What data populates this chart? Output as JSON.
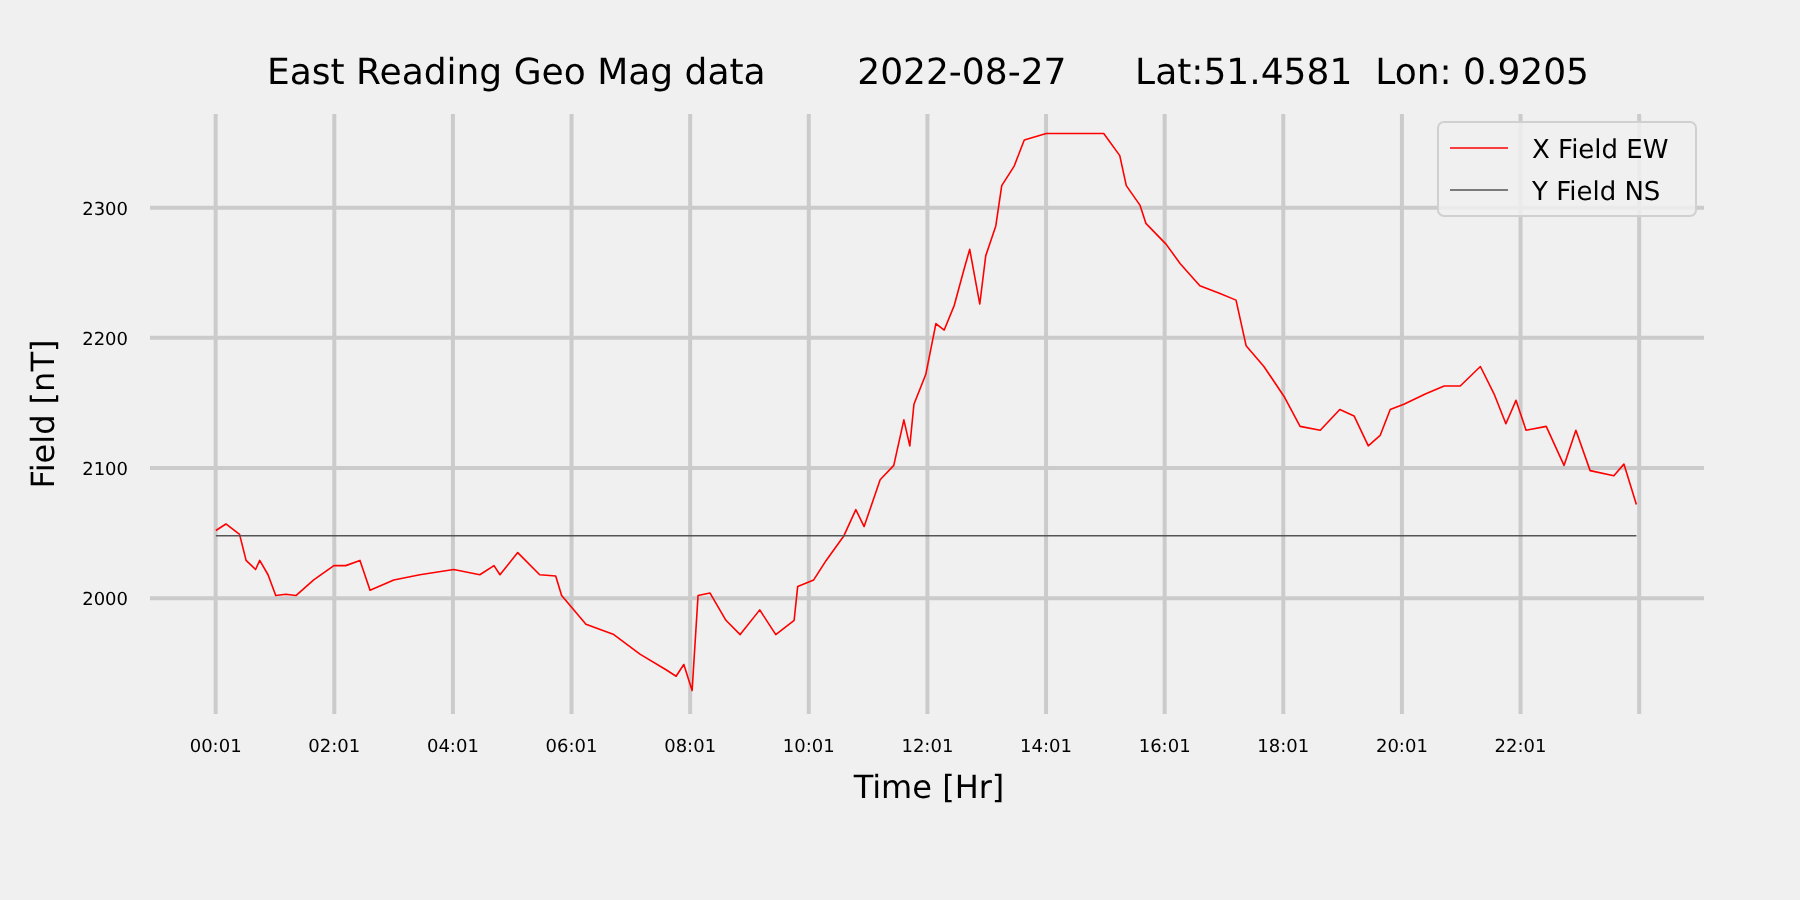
{
  "chart_data": {
    "type": "line",
    "title": "East Reading Geo Mag data        2022-08-27      Lat:51.4581  Lon: 0.9205",
    "xlabel": "Time  [Hr]",
    "ylabel": "Field  [nT]",
    "xlim": [
      -1.09,
      25.11
    ],
    "ylim": [
      1911,
      2372
    ],
    "xticks": [
      {
        "value": 0.017,
        "label": "00:01"
      },
      {
        "value": 2.017,
        "label": "02:01"
      },
      {
        "value": 4.017,
        "label": "04:01"
      },
      {
        "value": 6.017,
        "label": "06:01"
      },
      {
        "value": 8.017,
        "label": "08:01"
      },
      {
        "value": 10.017,
        "label": "10:01"
      },
      {
        "value": 12.017,
        "label": "12:01"
      },
      {
        "value": 14.017,
        "label": "14:01"
      },
      {
        "value": 16.017,
        "label": "16:01"
      },
      {
        "value": 18.017,
        "label": "18:01"
      },
      {
        "value": 20.017,
        "label": "20:01"
      },
      {
        "value": 22.017,
        "label": "22:01"
      },
      {
        "value": 24.017,
        "label": null
      }
    ],
    "yticks": [
      2000,
      2100,
      2200,
      2300
    ],
    "grid": true,
    "legend": "top right",
    "series": [
      {
        "name": "X Field EW",
        "color": "#ff0000",
        "x": [
          0.02,
          0.19,
          0.42,
          0.53,
          0.69,
          0.76,
          0.9,
          1.03,
          1.2,
          1.37,
          1.67,
          2.01,
          2.21,
          2.45,
          2.62,
          3.02,
          3.46,
          4.03,
          4.47,
          4.71,
          4.81,
          5.11,
          5.48,
          5.75,
          5.85,
          6.26,
          6.73,
          7.17,
          7.61,
          7.78,
          7.91,
          8.05,
          8.15,
          8.35,
          8.62,
          8.86,
          9.19,
          9.46,
          9.77,
          9.83,
          10.1,
          10.31,
          10.61,
          10.81,
          10.95,
          11.22,
          11.45,
          11.62,
          11.72,
          11.79,
          11.99,
          12.16,
          12.3,
          12.47,
          12.63,
          12.73,
          12.9,
          13.0,
          13.17,
          13.27,
          13.48,
          13.65,
          14.02,
          14.99,
          15.26,
          15.37,
          15.6,
          15.7,
          16.04,
          16.28,
          16.61,
          16.95,
          17.22,
          17.39,
          17.69,
          18.03,
          18.3,
          18.64,
          18.97,
          19.21,
          19.45,
          19.65,
          19.82,
          20.05,
          20.42,
          20.73,
          21.0,
          21.34,
          21.57,
          21.77,
          21.94,
          22.11,
          22.45,
          22.75,
          22.95,
          23.19,
          23.59,
          23.76,
          23.97
        ],
        "values": [
          2052,
          2057,
          2049,
          2029,
          2022,
          2029,
          2018,
          2002,
          2003,
          2002,
          2014,
          2025,
          2025,
          2029,
          2006,
          2014,
          2018,
          2022,
          2018,
          2025,
          2018,
          2035,
          2018,
          2017,
          2002,
          1980,
          1972,
          1957,
          1945,
          1940,
          1949,
          1929,
          2002,
          2004,
          1983,
          1972,
          1991,
          1972,
          1983,
          2009,
          2014,
          2029,
          2048,
          2068,
          2055,
          2091,
          2102,
          2137,
          2117,
          2149,
          2172,
          2211,
          2206,
          2225,
          2252,
          2268,
          2226,
          2263,
          2286,
          2317,
          2332,
          2352,
          2357,
          2357,
          2340,
          2317,
          2302,
          2288,
          2272,
          2257,
          2240,
          2234,
          2229,
          2194,
          2178,
          2155,
          2132,
          2129,
          2145,
          2140,
          2117,
          2125,
          2145,
          2149,
          2157,
          2163,
          2163,
          2178,
          2157,
          2134,
          2152,
          2129,
          2132,
          2102,
          2129,
          2098,
          2094,
          2103,
          2072
        ]
      },
      {
        "name": "Y Field NS",
        "color": "#555555",
        "x": [
          0.02,
          23.97
        ],
        "values": [
          2048,
          2048
        ]
      }
    ]
  }
}
